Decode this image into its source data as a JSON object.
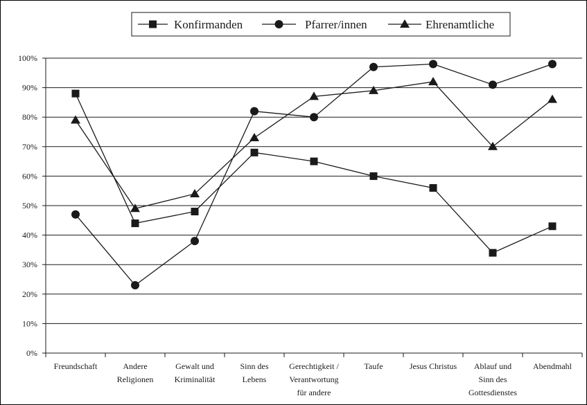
{
  "chart_data": {
    "type": "line",
    "categories": [
      [
        "Freundschaft"
      ],
      [
        "Andere",
        "Religionen"
      ],
      [
        "Gewalt und",
        "Kriminalität"
      ],
      [
        "Sinn des",
        "Lebens"
      ],
      [
        "Gerechtigkeit /",
        "Verantwortung",
        "für andere"
      ],
      [
        "Taufe"
      ],
      [
        "Jesus Christus"
      ],
      [
        "Ablauf und",
        "Sinn des",
        "Gottesdienstes"
      ],
      [
        "Abendmahl"
      ]
    ],
    "series": [
      {
        "name": "Konfirmanden",
        "marker": "square",
        "values": [
          88,
          44,
          48,
          68,
          65,
          60,
          56,
          34,
          43
        ]
      },
      {
        "name": "Pfarrer/innen",
        "marker": "circle",
        "values": [
          47,
          23,
          38,
          82,
          80,
          97,
          98,
          91,
          98
        ]
      },
      {
        "name": "Ehrenamtliche",
        "marker": "triangle",
        "values": [
          79,
          49,
          54,
          73,
          87,
          89,
          92,
          70,
          86
        ]
      }
    ],
    "ylim": [
      0,
      100
    ],
    "yticks": [
      "0%",
      "10%",
      "20%",
      "30%",
      "40%",
      "50%",
      "60%",
      "70%",
      "80%",
      "90%",
      "100%"
    ],
    "grid": true,
    "legend_position": "top-center",
    "colors": {
      "line": "#1a1a1a",
      "grid": "#1a1a1a"
    }
  }
}
